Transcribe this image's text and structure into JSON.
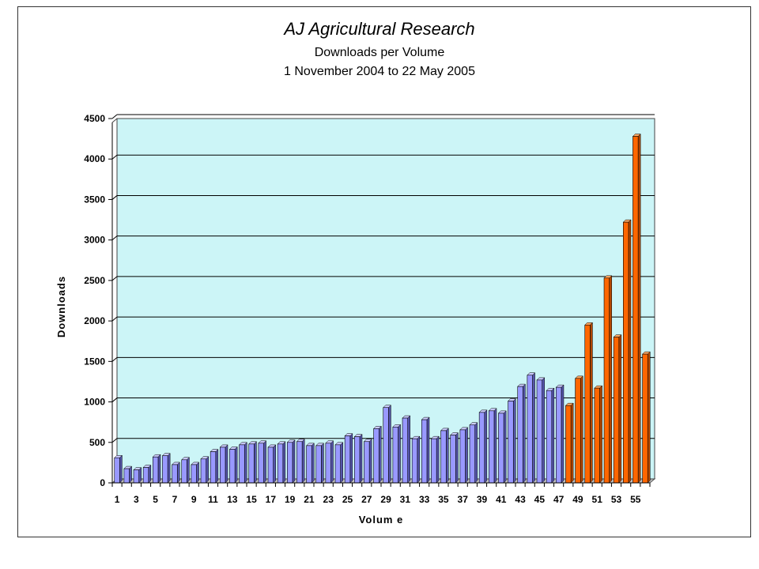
{
  "chart_data": {
    "type": "bar",
    "title": "AJ Agricultural Research",
    "subtitle": "Downloads per Volume",
    "date_range": "1 November 2004 to 22 May 2005",
    "xlabel": "Volum e",
    "ylabel": "Downloads",
    "ylim": [
      0,
      4500
    ],
    "yticks": [
      0,
      500,
      1000,
      1500,
      2000,
      2500,
      3000,
      3500,
      4000,
      4500
    ],
    "xtick_labels": [
      "1",
      "3",
      "5",
      "7",
      "9",
      "11",
      "13",
      "15",
      "17",
      "19",
      "21",
      "23",
      "25",
      "27",
      "29",
      "31",
      "33",
      "35",
      "37",
      "39",
      "41",
      "43",
      "45",
      "47",
      "49",
      "51",
      "53",
      "55"
    ],
    "grid": true,
    "plot_background": "#ccf5f7",
    "colors": {
      "default_bar": "#9999ff",
      "highlight_bar": "#ff6600"
    },
    "highlight_from_volume": 48,
    "categories": [
      1,
      2,
      3,
      4,
      5,
      6,
      7,
      8,
      9,
      10,
      11,
      12,
      13,
      14,
      15,
      16,
      17,
      18,
      19,
      20,
      21,
      22,
      23,
      24,
      25,
      26,
      27,
      28,
      29,
      30,
      31,
      32,
      33,
      34,
      35,
      36,
      37,
      38,
      39,
      40,
      41,
      42,
      43,
      44,
      45,
      46,
      47,
      48,
      49,
      50,
      51,
      52,
      53,
      54,
      55,
      56
    ],
    "values": [
      310,
      175,
      160,
      190,
      320,
      335,
      225,
      285,
      225,
      295,
      385,
      440,
      415,
      470,
      480,
      490,
      440,
      480,
      500,
      510,
      460,
      460,
      490,
      470,
      580,
      570,
      510,
      670,
      930,
      690,
      800,
      545,
      780,
      545,
      645,
      590,
      655,
      715,
      870,
      890,
      860,
      1010,
      1190,
      1330,
      1270,
      1140,
      1180,
      955,
      1290,
      1950,
      1170,
      2530,
      1800,
      3220,
      4280,
      1590
    ]
  }
}
